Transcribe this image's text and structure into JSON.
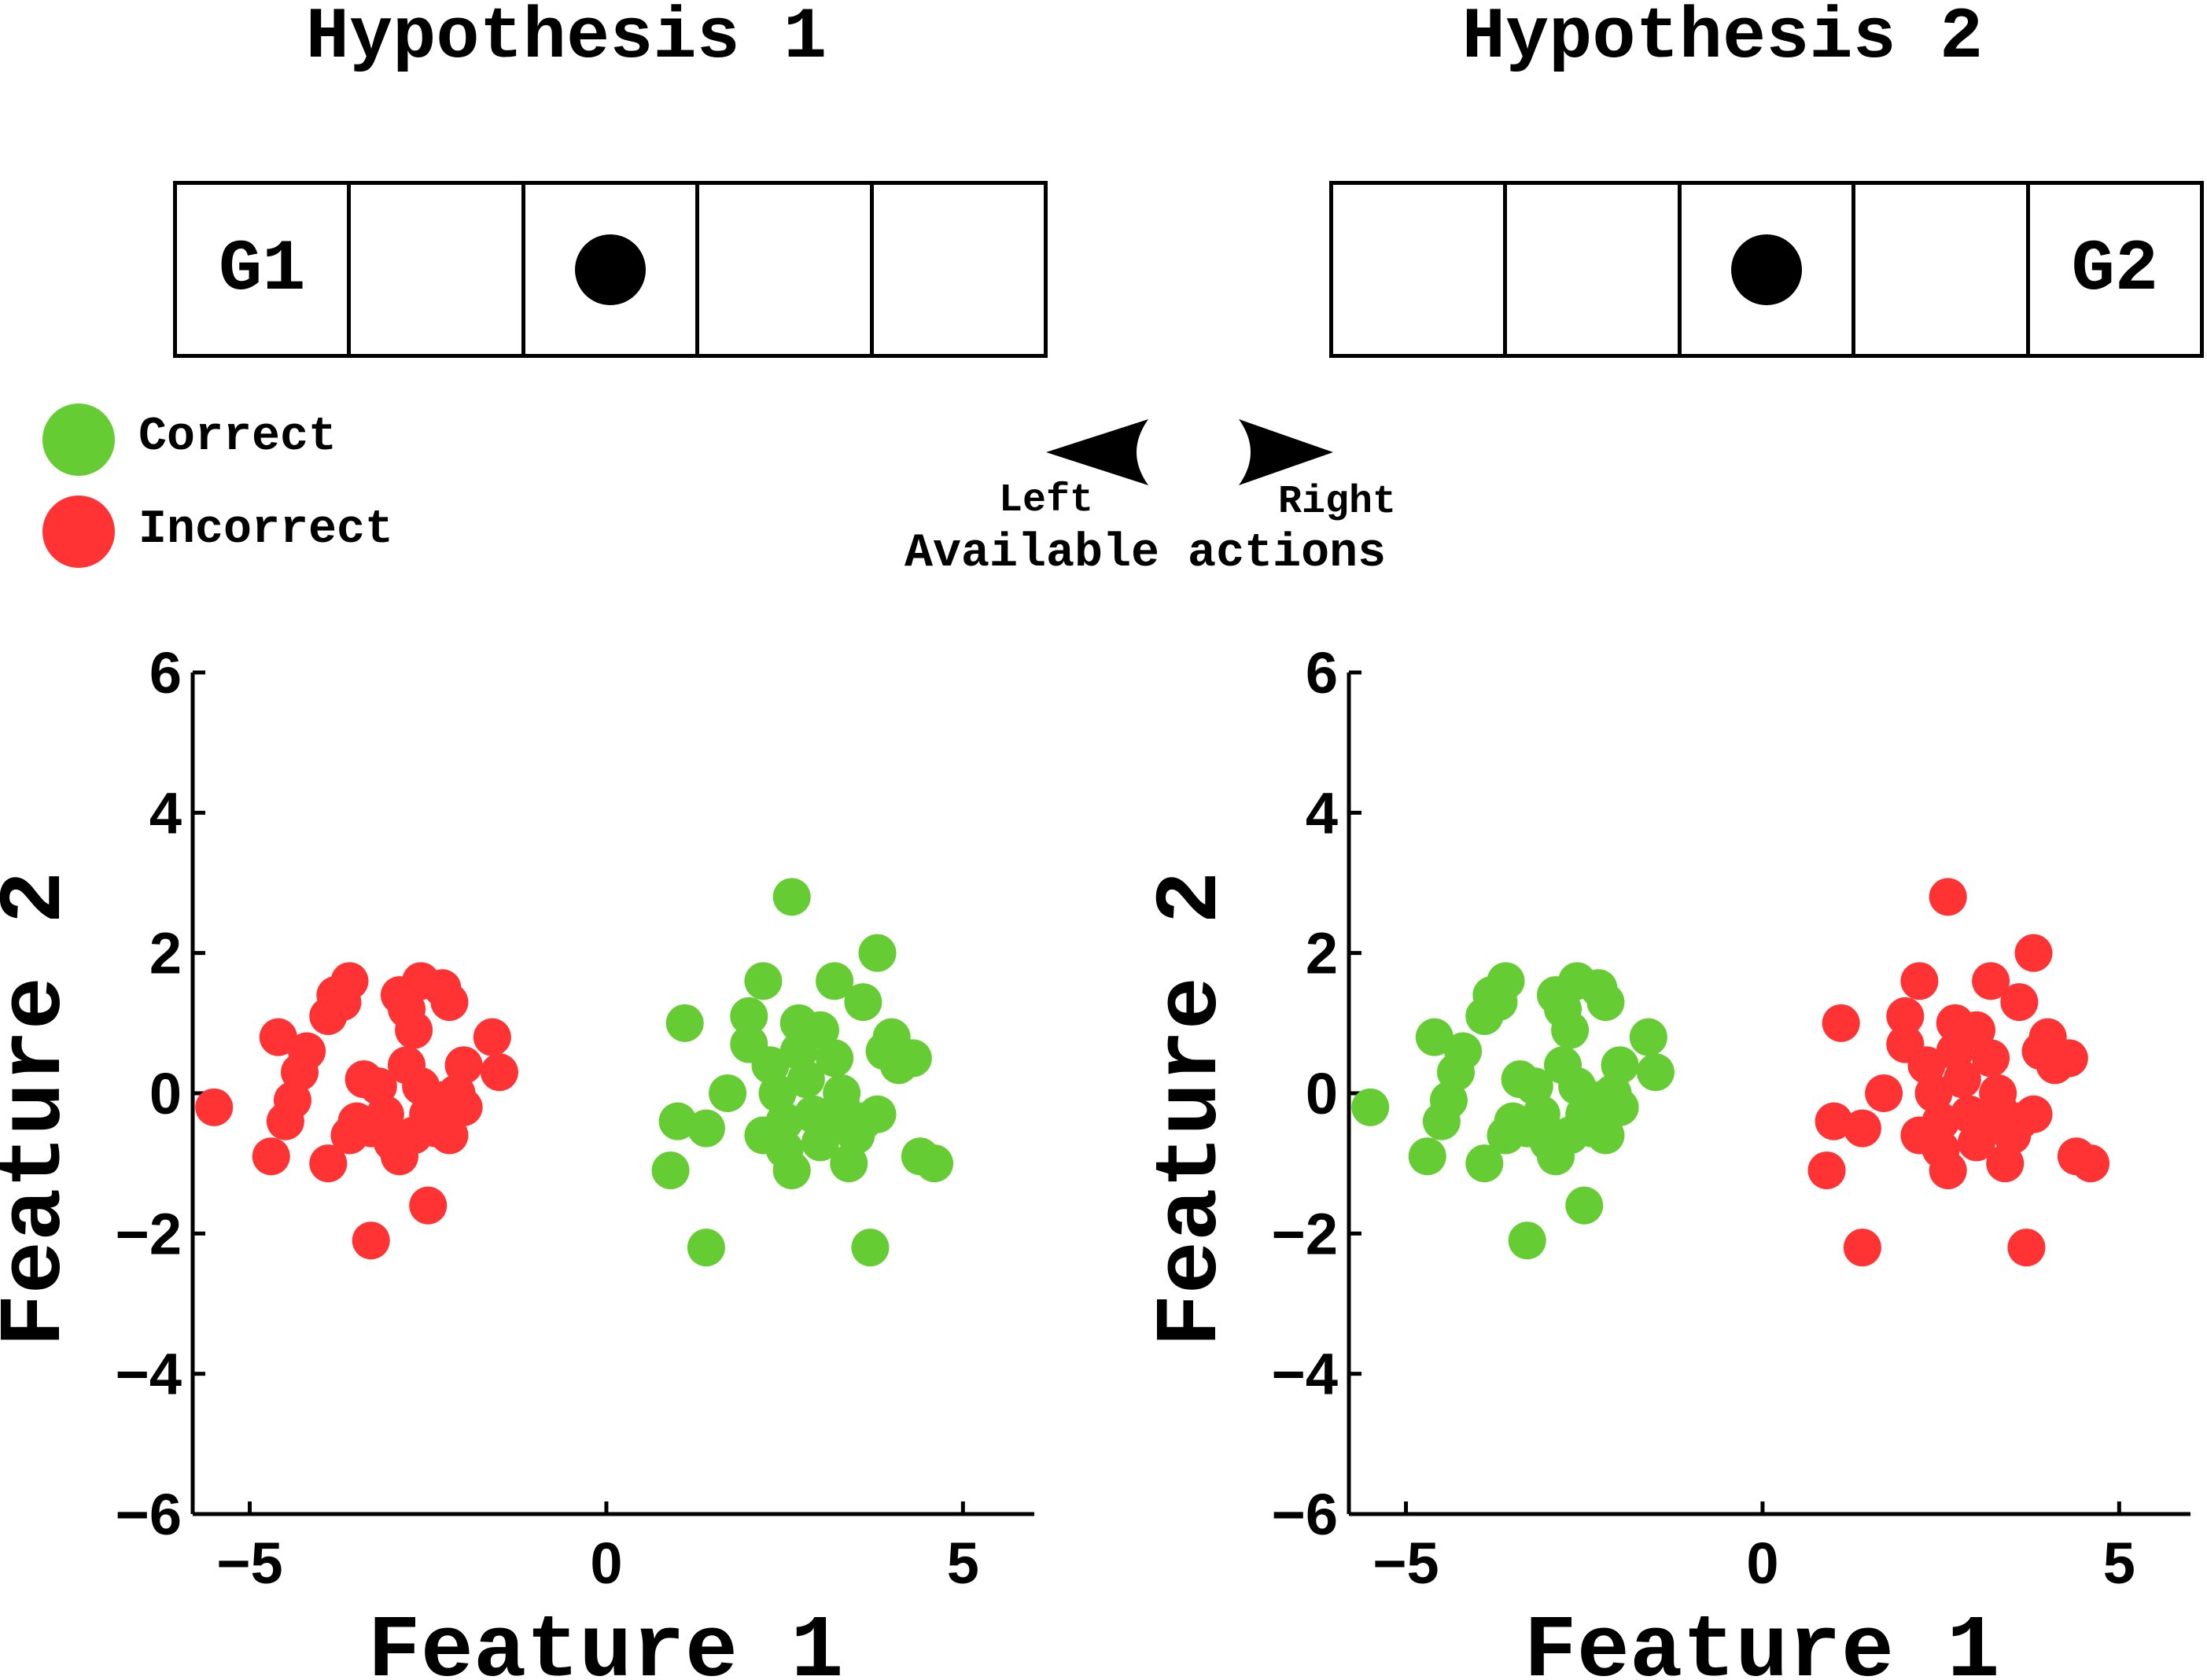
{
  "hypotheses": [
    {
      "title": "Hypothesis 1",
      "cells": [
        "G1",
        "",
        "agent",
        "",
        ""
      ]
    },
    {
      "title": "Hypothesis 2",
      "cells": [
        "",
        "",
        "agent",
        "",
        "G2"
      ]
    }
  ],
  "legend": [
    {
      "label": "Correct",
      "color": "#66cc33"
    },
    {
      "label": "Incorrect",
      "color": "#ff3333"
    }
  ],
  "actions": {
    "left": "Left",
    "right": "Right",
    "caption": "Available actions"
  },
  "chart_data": [
    {
      "type": "scatter",
      "xlabel": "Feature 1",
      "ylabel": "Feature 2",
      "xlim": [
        -5.8,
        6
      ],
      "ylim": [
        -6,
        6
      ],
      "xticks": [
        -5,
        0,
        5
      ],
      "yticks": [
        -6,
        -4,
        -2,
        0,
        2,
        4,
        6
      ],
      "series": [
        {
          "name": "Incorrect",
          "color": "#ff3333",
          "points": [
            [
              -5.5,
              -0.2
            ],
            [
              -4.7,
              -0.9
            ],
            [
              -4.5,
              -0.4
            ],
            [
              -4.4,
              -0.1
            ],
            [
              -4.6,
              0.8
            ],
            [
              -4.2,
              0.6
            ],
            [
              -4.3,
              0.3
            ],
            [
              -3.9,
              1.1
            ],
            [
              -3.8,
              1.4
            ],
            [
              -3.6,
              1.6
            ],
            [
              -3.7,
              1.3
            ],
            [
              -3.9,
              -1.0
            ],
            [
              -3.6,
              -0.6
            ],
            [
              -3.5,
              -0.4
            ],
            [
              -3.4,
              0.2
            ],
            [
              -3.3,
              -2.1
            ],
            [
              -3.2,
              0.1
            ],
            [
              -3.0,
              -0.7
            ],
            [
              -2.9,
              1.4
            ],
            [
              -2.8,
              1.2
            ],
            [
              -2.7,
              0.9
            ],
            [
              -2.6,
              1.6
            ],
            [
              -2.8,
              0.4
            ],
            [
              -2.6,
              0.1
            ],
            [
              -2.5,
              -0.3
            ],
            [
              -2.4,
              -0.5
            ],
            [
              -2.2,
              -0.6
            ],
            [
              -2.3,
              1.5
            ],
            [
              -2.2,
              1.3
            ],
            [
              -2.1,
              0.0
            ],
            [
              -2.0,
              -0.2
            ],
            [
              -2.0,
              0.4
            ],
            [
              -2.5,
              -1.6
            ],
            [
              -2.9,
              -0.9
            ],
            [
              -1.6,
              0.8
            ],
            [
              -1.5,
              0.3
            ],
            [
              -3.1,
              -0.3
            ],
            [
              -3.3,
              -0.5
            ],
            [
              -2.3,
              -0.1
            ],
            [
              -2.7,
              -0.6
            ]
          ]
        },
        {
          "name": "Correct",
          "color": "#66cc33",
          "points": [
            [
              1.1,
              1.0
            ],
            [
              0.9,
              -1.1
            ],
            [
              1.0,
              -0.4
            ],
            [
              1.4,
              -0.5
            ],
            [
              1.4,
              -2.2
            ],
            [
              1.7,
              0.0
            ],
            [
              2.0,
              1.1
            ],
            [
              2.0,
              0.7
            ],
            [
              2.2,
              1.6
            ],
            [
              2.3,
              0.4
            ],
            [
              2.4,
              0.0
            ],
            [
              2.5,
              -0.4
            ],
            [
              2.5,
              -0.8
            ],
            [
              2.6,
              2.8
            ],
            [
              2.7,
              1.0
            ],
            [
              2.7,
              0.6
            ],
            [
              2.8,
              0.2
            ],
            [
              2.9,
              -0.3
            ],
            [
              3.0,
              -0.7
            ],
            [
              3.0,
              0.9
            ],
            [
              3.1,
              -0.5
            ],
            [
              3.2,
              1.6
            ],
            [
              3.2,
              0.5
            ],
            [
              3.3,
              -0.2
            ],
            [
              3.4,
              -1.0
            ],
            [
              3.5,
              -0.6
            ],
            [
              3.6,
              1.3
            ],
            [
              3.6,
              -0.4
            ],
            [
              3.7,
              -2.2
            ],
            [
              3.8,
              2.0
            ],
            [
              3.9,
              0.6
            ],
            [
              4.0,
              0.8
            ],
            [
              4.1,
              0.4
            ],
            [
              4.3,
              0.5
            ],
            [
              4.4,
              -0.9
            ],
            [
              4.6,
              -1.0
            ],
            [
              2.6,
              -1.1
            ],
            [
              3.8,
              -0.3
            ],
            [
              2.2,
              -0.6
            ],
            [
              3.3,
              0.0
            ]
          ]
        }
      ]
    },
    {
      "type": "scatter",
      "xlabel": "Feature 1",
      "ylabel": "Feature 2",
      "xlim": [
        -5.8,
        6
      ],
      "ylim": [
        -6,
        6
      ],
      "xticks": [
        -5,
        0,
        5
      ],
      "yticks": [
        -6,
        -4,
        -2,
        0,
        2,
        4,
        6
      ],
      "series": [
        {
          "name": "Correct",
          "color": "#66cc33",
          "points": [
            [
              -5.5,
              -0.2
            ],
            [
              -4.7,
              -0.9
            ],
            [
              -4.5,
              -0.4
            ],
            [
              -4.4,
              -0.1
            ],
            [
              -4.6,
              0.8
            ],
            [
              -4.2,
              0.6
            ],
            [
              -4.3,
              0.3
            ],
            [
              -3.9,
              1.1
            ],
            [
              -3.8,
              1.4
            ],
            [
              -3.6,
              1.6
            ],
            [
              -3.7,
              1.3
            ],
            [
              -3.9,
              -1.0
            ],
            [
              -3.6,
              -0.6
            ],
            [
              -3.5,
              -0.4
            ],
            [
              -3.4,
              0.2
            ],
            [
              -3.3,
              -2.1
            ],
            [
              -3.2,
              0.1
            ],
            [
              -3.0,
              -0.7
            ],
            [
              -2.9,
              1.4
            ],
            [
              -2.8,
              1.2
            ],
            [
              -2.7,
              0.9
            ],
            [
              -2.6,
              1.6
            ],
            [
              -2.8,
              0.4
            ],
            [
              -2.6,
              0.1
            ],
            [
              -2.5,
              -0.3
            ],
            [
              -2.4,
              -0.5
            ],
            [
              -2.2,
              -0.6
            ],
            [
              -2.3,
              1.5
            ],
            [
              -2.2,
              1.3
            ],
            [
              -2.1,
              0.0
            ],
            [
              -2.0,
              -0.2
            ],
            [
              -2.0,
              0.4
            ],
            [
              -2.5,
              -1.6
            ],
            [
              -2.9,
              -0.9
            ],
            [
              -1.6,
              0.8
            ],
            [
              -1.5,
              0.3
            ],
            [
              -3.1,
              -0.3
            ],
            [
              -3.3,
              -0.5
            ],
            [
              -2.3,
              -0.1
            ],
            [
              -2.7,
              -0.6
            ]
          ]
        },
        {
          "name": "Incorrect",
          "color": "#ff3333",
          "points": [
            [
              1.1,
              1.0
            ],
            [
              0.9,
              -1.1
            ],
            [
              1.0,
              -0.4
            ],
            [
              1.4,
              -0.5
            ],
            [
              1.4,
              -2.2
            ],
            [
              1.7,
              0.0
            ],
            [
              2.0,
              1.1
            ],
            [
              2.0,
              0.7
            ],
            [
              2.2,
              1.6
            ],
            [
              2.3,
              0.4
            ],
            [
              2.4,
              0.0
            ],
            [
              2.5,
              -0.4
            ],
            [
              2.5,
              -0.8
            ],
            [
              2.6,
              2.8
            ],
            [
              2.7,
              1.0
            ],
            [
              2.7,
              0.6
            ],
            [
              2.8,
              0.2
            ],
            [
              2.9,
              -0.3
            ],
            [
              3.0,
              -0.7
            ],
            [
              3.0,
              0.9
            ],
            [
              3.1,
              -0.5
            ],
            [
              3.2,
              1.6
            ],
            [
              3.2,
              0.5
            ],
            [
              3.3,
              -0.2
            ],
            [
              3.4,
              -1.0
            ],
            [
              3.5,
              -0.6
            ],
            [
              3.6,
              1.3
            ],
            [
              3.6,
              -0.4
            ],
            [
              3.7,
              -2.2
            ],
            [
              3.8,
              2.0
            ],
            [
              3.9,
              0.6
            ],
            [
              4.0,
              0.8
            ],
            [
              4.1,
              0.4
            ],
            [
              4.3,
              0.5
            ],
            [
              4.4,
              -0.9
            ],
            [
              4.6,
              -1.0
            ],
            [
              2.6,
              -1.1
            ],
            [
              3.8,
              -0.3
            ],
            [
              2.2,
              -0.6
            ],
            [
              3.3,
              0.0
            ]
          ]
        }
      ]
    }
  ]
}
